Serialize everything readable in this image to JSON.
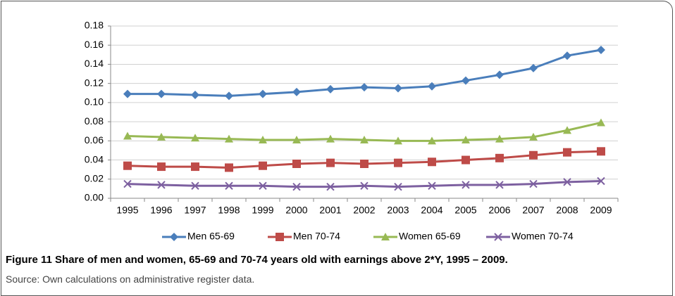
{
  "chart_data": {
    "type": "line",
    "categories": [
      "1995",
      "1996",
      "1997",
      "1998",
      "1999",
      "2000",
      "2001",
      "2002",
      "2003",
      "2004",
      "2005",
      "2006",
      "2007",
      "2008",
      "2009"
    ],
    "series": [
      {
        "name": "Men 65-69",
        "color": "#4a7ebb",
        "marker": "diamond",
        "values": [
          0.109,
          0.109,
          0.108,
          0.107,
          0.109,
          0.111,
          0.114,
          0.116,
          0.115,
          0.117,
          0.123,
          0.129,
          0.136,
          0.149,
          0.155
        ]
      },
      {
        "name": "Men 70-74",
        "color": "#be4b48",
        "marker": "square",
        "values": [
          0.034,
          0.033,
          0.033,
          0.032,
          0.034,
          0.036,
          0.037,
          0.036,
          0.037,
          0.038,
          0.04,
          0.042,
          0.045,
          0.048,
          0.049
        ]
      },
      {
        "name": "Women 65-69",
        "color": "#98b954",
        "marker": "triangle",
        "values": [
          0.065,
          0.064,
          0.063,
          0.062,
          0.061,
          0.061,
          0.062,
          0.061,
          0.06,
          0.06,
          0.061,
          0.062,
          0.064,
          0.071,
          0.079
        ]
      },
      {
        "name": "Women 70-74",
        "color": "#7d60a0",
        "marker": "x",
        "values": [
          0.015,
          0.014,
          0.013,
          0.013,
          0.013,
          0.012,
          0.012,
          0.013,
          0.012,
          0.013,
          0.014,
          0.014,
          0.015,
          0.017,
          0.018
        ]
      }
    ],
    "ylim": [
      0,
      0.18
    ],
    "yticks": [
      {
        "value": 0,
        "label": "0.00"
      },
      0.02,
      0.04,
      0.06,
      0.08,
      {
        "value": 0.1,
        "label": "0.10"
      },
      0.12,
      0.14,
      0.16,
      0.18
    ],
    "grid": true,
    "legend": "bottom"
  },
  "figure": {
    "label": "Figure 11",
    "caption": "Share of men and women, 65-69 and 70-74 years old with earnings above 2*Y, 1995 – 2009.",
    "source": "Source: Own calculations on administrative register data."
  }
}
